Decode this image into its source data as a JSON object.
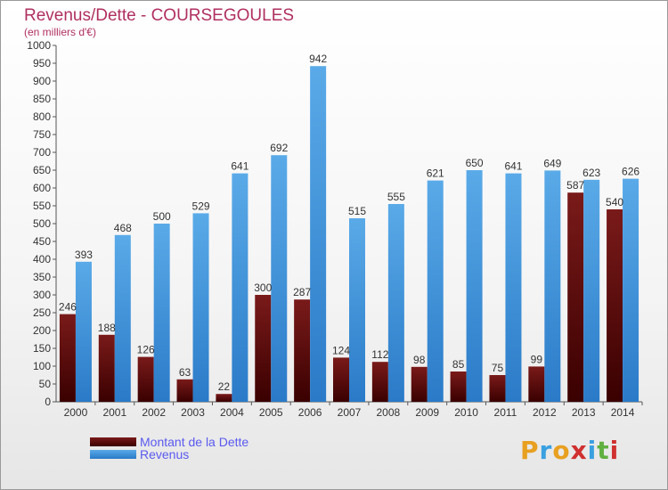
{
  "header": {
    "title": "Revenus/Dette - COURSEGOULES",
    "subtitle": "(en milliers d'€)"
  },
  "colors": {
    "dette_top": "#7a1a1a",
    "dette_bottom": "#3a0000",
    "revenus_top": "#5aaae8",
    "revenus_bottom": "#2a7ac8",
    "title": "#b03060"
  },
  "legend": [
    {
      "label": "Montant de la Dette"
    },
    {
      "label": "Revenus"
    }
  ],
  "brand": {
    "letters": [
      "P",
      "r",
      "o",
      "x",
      "i",
      "t",
      "i"
    ],
    "colors": [
      "#e8a020",
      "#3aa0e0",
      "#e8a020",
      "#d03030",
      "#3aa0e0",
      "#60b040",
      "#d03030"
    ]
  },
  "chart_data": {
    "type": "bar",
    "title": "Revenus/Dette - COURSEGOULES",
    "categories": [
      "2000",
      "2001",
      "2002",
      "2003",
      "2004",
      "2005",
      "2006",
      "2007",
      "2008",
      "2009",
      "2010",
      "2011",
      "2012",
      "2013",
      "2014"
    ],
    "series": [
      {
        "name": "Montant de la Dette",
        "values": [
          246,
          188,
          126,
          63,
          22,
          300,
          287,
          124,
          112,
          98,
          85,
          75,
          99,
          587,
          540
        ]
      },
      {
        "name": "Revenus",
        "values": [
          393,
          468,
          500,
          529,
          641,
          692,
          942,
          515,
          555,
          621,
          650,
          641,
          649,
          623,
          626
        ]
      }
    ],
    "ylim": [
      0,
      1000
    ],
    "yticks": [
      0,
      50,
      100,
      150,
      200,
      250,
      300,
      350,
      400,
      450,
      500,
      550,
      600,
      650,
      700,
      750,
      800,
      850,
      900,
      950,
      1000
    ],
    "grid": false,
    "legend_position": "bottom-left"
  }
}
